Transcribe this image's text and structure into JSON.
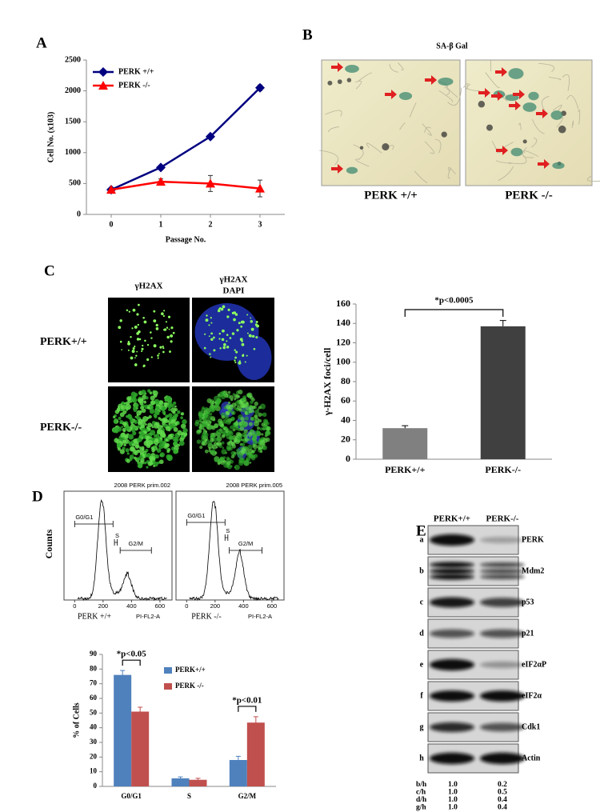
{
  "panel_labels": [
    "A",
    "B",
    "C",
    "D",
    "E"
  ],
  "chart_data": [
    {
      "type": "line",
      "xlabel": "Passage No.",
      "ylabel": "Cell No. (x103)",
      "x": [
        0,
        1,
        2,
        3
      ],
      "xlim": [
        -0.5,
        3.5
      ],
      "xticks": [
        0,
        1,
        2,
        3
      ],
      "ylim": [
        0,
        2500
      ],
      "yticks": [
        0,
        500,
        1000,
        1500,
        2000,
        2500
      ],
      "legend": "upper left",
      "series": [
        {
          "name": "PERK +/+",
          "color": "#000080",
          "marker": "diamond",
          "values": [
            400,
            760,
            1260,
            2050
          ],
          "errors": [
            15,
            30,
            20,
            45
          ]
        },
        {
          "name": "PERK -/-",
          "color": "#ff0000",
          "marker": "triangle",
          "values": [
            400,
            530,
            500,
            420
          ],
          "errors": [
            25,
            45,
            130,
            135
          ]
        }
      ]
    },
    {
      "type": "bar",
      "ylabel": "γ-H2AX foci/cell",
      "categories": [
        "PERK+/+",
        "PERK-/-"
      ],
      "values": [
        32,
        137
      ],
      "errors": [
        2.5,
        6
      ],
      "colors": [
        "#808080",
        "#404040"
      ],
      "ylim": [
        0,
        160
      ],
      "yticks": [
        0,
        20,
        40,
        60,
        80,
        100,
        120,
        140,
        160
      ],
      "annotation": "*p<0.0005"
    },
    {
      "type": "grouped_bar",
      "ylabel": "% of Cells",
      "categories": [
        "G0/G1",
        "S",
        "G2/M"
      ],
      "ylim": [
        0,
        90
      ],
      "yticks": [
        0,
        10,
        20,
        30,
        40,
        50,
        60,
        70,
        80,
        90
      ],
      "legend": "upper right",
      "series": [
        {
          "name": "PERK+/+",
          "color": "#4f81bd",
          "values": [
            76,
            5.5,
            18
          ],
          "errors": [
            3,
            1,
            2.5
          ]
        },
        {
          "name": "PERK -/-",
          "color": "#c0504d",
          "values": [
            51,
            4.5,
            43.5
          ],
          "errors": [
            3,
            1,
            4
          ]
        }
      ],
      "annotations": [
        {
          "text": "*p<0.05",
          "category": "G0/G1"
        },
        {
          "text": "*p<0.01",
          "category": "G2/M"
        }
      ]
    }
  ],
  "panel_b": {
    "title": "SA-β Gal",
    "captions": [
      "PERK +/+",
      "PERK -/-"
    ]
  },
  "panel_c": {
    "column_headers": [
      [
        "γH2AX"
      ],
      [
        "γH2AX",
        "DAPI"
      ]
    ],
    "row_labels": [
      "PERK+/+",
      "PERK-/-"
    ]
  },
  "panel_d": {
    "ylabel": "Counts",
    "xlabel": "PI-FL2-A",
    "xlim": [
      -75,
      685
    ],
    "xticks": [
      0,
      200,
      400,
      600
    ],
    "gates": [
      "G0/G1",
      "S",
      "G2/M"
    ],
    "histograms": [
      {
        "title": "2008 PERK prim.002",
        "caption": "PERK +/+"
      },
      {
        "title": "2008 PERK prim.005",
        "caption": "PERK -/-"
      }
    ]
  },
  "panel_e": {
    "column_headers": [
      "PERK+/+",
      "PERK-/-"
    ],
    "rows": [
      {
        "letter": "a",
        "label": "PERK"
      },
      {
        "letter": "b",
        "label": "Mdm2"
      },
      {
        "letter": "c",
        "label": "p53"
      },
      {
        "letter": "d",
        "label": "p21"
      },
      {
        "letter": "e",
        "label": "eIF2αP"
      },
      {
        "letter": "f",
        "label": "eIF2α"
      },
      {
        "letter": "g",
        "label": "Cdk1"
      },
      {
        "letter": "h",
        "label": "Actin"
      }
    ],
    "ratios": [
      [
        "b/h",
        "1.0",
        "0.2"
      ],
      [
        "c/h",
        "1.0",
        "0.5"
      ],
      [
        "d/h",
        "1.0",
        "0.4"
      ],
      [
        "g/h",
        "1.0",
        "0.4"
      ]
    ]
  }
}
